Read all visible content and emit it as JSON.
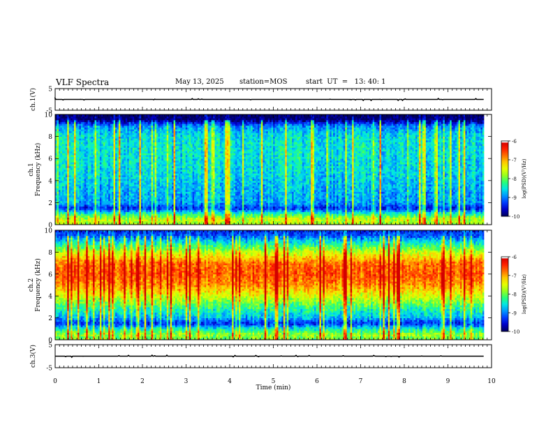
{
  "header": {
    "title": "VLF Spectra",
    "date": "May 13, 2025",
    "station": "station=MOS",
    "start_ut": "start  UT  =   13: 40: 1"
  },
  "chart_data": {
    "type": "heatmap",
    "xlabel": "Time  (min)",
    "xlim": [
      0,
      10
    ],
    "xticks": [
      "0",
      "1",
      "2",
      "3",
      "4",
      "5",
      "6",
      "7",
      "8",
      "9",
      "10"
    ],
    "panels": [
      {
        "id": "ch1-voltage",
        "type": "line",
        "ylabel": "ch.1(V)",
        "ylim": [
          -5,
          5
        ],
        "yticks": [
          "5",
          "-5"
        ],
        "level": 0,
        "description_values": "flat near 0 V with sparse small spikes"
      },
      {
        "id": "ch1-spectrogram",
        "type": "heatmap",
        "ylabel_top": "ch.1",
        "ylabel": "Frequency  (kHz)",
        "ylim": [
          0,
          10
        ],
        "yticks": [
          "0",
          "2",
          "4",
          "6",
          "8",
          "10"
        ],
        "colorbar": {
          "label": "log(PSD)(V²/Hz)",
          "range": [
            -10,
            -6
          ],
          "ticks": [
            "-6",
            "-7",
            "-8",
            "-9",
            "-10"
          ]
        },
        "profile": {
          "freq_khz": [
            0,
            0.5,
            1,
            1.5,
            2,
            3,
            4,
            5,
            6,
            7,
            8,
            9,
            9.5,
            10
          ],
          "level": [
            0.55,
            0.6,
            0.42,
            0.15,
            0.28,
            0.3,
            0.33,
            0.35,
            0.36,
            0.37,
            0.36,
            0.25,
            0.02,
            0.0
          ]
        }
      },
      {
        "id": "ch2-spectrogram",
        "type": "heatmap",
        "ylabel_top": "ch.2",
        "ylabel": "Frequency  (kHz)",
        "ylim": [
          0,
          10
        ],
        "yticks": [
          "0",
          "2",
          "4",
          "6",
          "8",
          "10"
        ],
        "colorbar": {
          "label": "log(PSD)(V²/Hz)",
          "range": [
            -10,
            -6
          ],
          "ticks": [
            "-6",
            "-7",
            "-8",
            "-9",
            "-10"
          ]
        },
        "profile": {
          "freq_khz": [
            0,
            0.5,
            1,
            1.5,
            2,
            3,
            4,
            5,
            6,
            7,
            8,
            9,
            9.5,
            10
          ],
          "level": [
            0.5,
            0.55,
            0.4,
            0.15,
            0.3,
            0.45,
            0.62,
            0.78,
            0.85,
            0.82,
            0.6,
            0.35,
            0.2,
            0.15
          ]
        }
      },
      {
        "id": "ch3-voltage",
        "type": "line",
        "ylabel": "ch.3(V)",
        "ylim": [
          -5,
          5
        ],
        "yticks": [
          "5",
          "-5"
        ],
        "level": 0
      }
    ],
    "colors": {
      "colormap": [
        "#000080",
        "#0000ff",
        "#00a0ff",
        "#00ffd0",
        "#20ff40",
        "#d0ff00",
        "#ffff00",
        "#ffa000",
        "#ff2000",
        "#ffffff"
      ]
    }
  }
}
